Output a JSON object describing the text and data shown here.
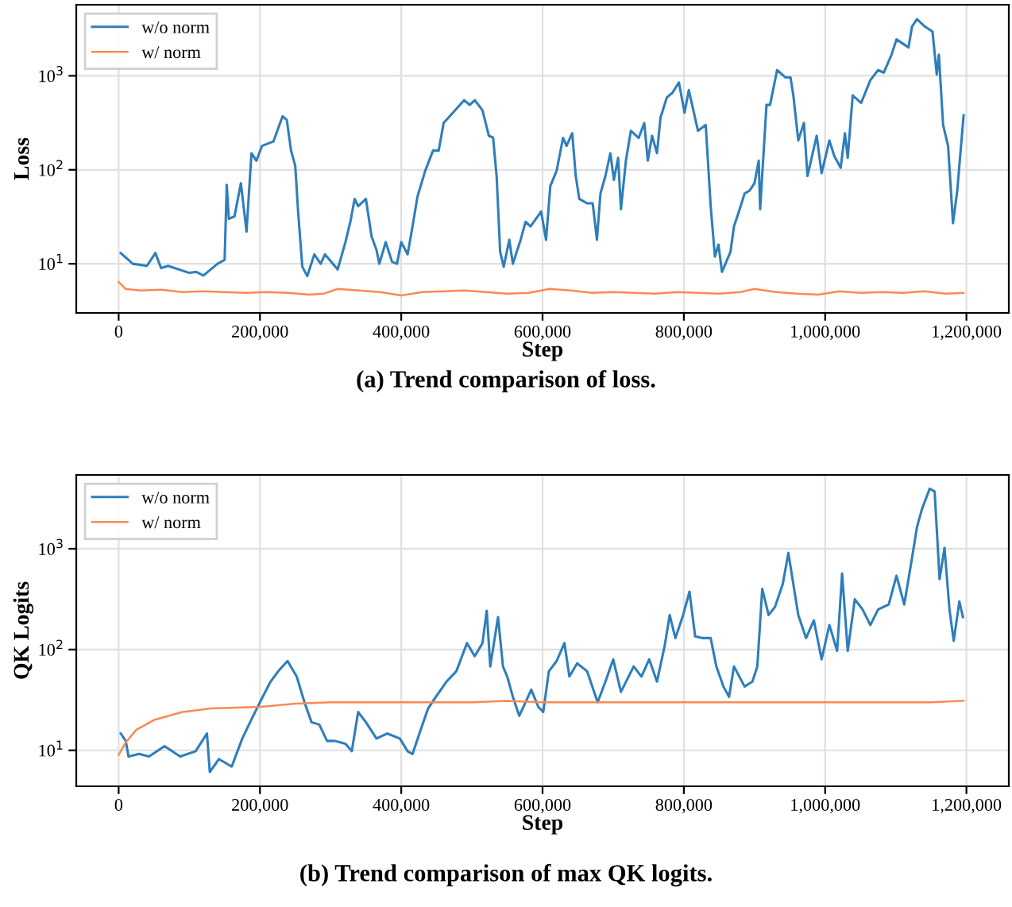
{
  "chart_data": [
    {
      "type": "line",
      "xlabel": "Step",
      "ylabel": "Loss",
      "log": "y",
      "grid": true,
      "legend": "top left",
      "marker": "none",
      "line_style": "solid",
      "xlim": [
        -60000,
        1260000
      ],
      "xticks": [
        0,
        {
          "value": 200000,
          "label": "200,000"
        },
        {
          "value": 400000,
          "label": "400,000"
        },
        {
          "value": 600000,
          "label": "600,000"
        },
        {
          "value": 800000,
          "label": "800,000"
        },
        {
          "value": 1000000,
          "label": "1,000,000"
        },
        {
          "value": 1200000,
          "label": "1,200,000"
        }
      ],
      "ylim": [
        3,
        5700
      ],
      "yticks": [
        {
          "value": 10,
          "label": "10$^{1}$"
        },
        {
          "value": 100,
          "label": "10$^{2}$"
        },
        {
          "value": 1000,
          "label": "10$^{3}$"
        }
      ],
      "annotations": [
        "(a) Trend comparison of loss."
      ],
      "series": [
        {
          "name": "w/o norm",
          "color": "#2e7ebc",
          "x": [
            3000,
            20000,
            40000,
            52000,
            60000,
            70000,
            100000,
            110000,
            120000,
            140000,
            150000,
            153000,
            156000,
            164000,
            173000,
            181000,
            188000,
            195000,
            203000,
            219000,
            232000,
            238000,
            244000,
            250000,
            254000,
            260000,
            267000,
            277000,
            286000,
            292000,
            310000,
            321000,
            328000,
            334000,
            339000,
            350000,
            358000,
            365000,
            369000,
            378000,
            387000,
            394000,
            400000,
            409000,
            416000,
            423000,
            434000,
            445000,
            453000,
            460000,
            467000,
            489000,
            497000,
            504000,
            515000,
            524000,
            530000,
            535000,
            540000,
            545000,
            553000,
            558000,
            569000,
            576000,
            583000,
            598000,
            605000,
            611000,
            620000,
            629000,
            634000,
            642000,
            647000,
            652000,
            663000,
            671000,
            677000,
            682000,
            689000,
            696000,
            701000,
            707000,
            711000,
            718000,
            725000,
            736000,
            744000,
            749000,
            755000,
            762000,
            767000,
            776000,
            784000,
            793000,
            801000,
            807000,
            820000,
            831000,
            838000,
            844000,
            849000,
            854000,
            866000,
            871000,
            878000,
            886000,
            893000,
            900000,
            906000,
            908000,
            917000,
            922000,
            932000,
            944000,
            951000,
            955000,
            962000,
            970000,
            975000,
            988000,
            995000,
            1006000,
            1013000,
            1022000,
            1028000,
            1032000,
            1039000,
            1051000,
            1064000,
            1075000,
            1083000,
            1094000,
            1101000,
            1112000,
            1118000,
            1123000,
            1130000,
            1141000,
            1152000,
            1158000,
            1161000,
            1167000,
            1174000,
            1181000,
            1187000,
            1196000
          ],
          "values": [
            13,
            10,
            9.5,
            13,
            9,
            9.5,
            8,
            8.2,
            7.5,
            10,
            11,
            69,
            30,
            32,
            72,
            22,
            150,
            125,
            180,
            200,
            370,
            340,
            160,
            110,
            36,
            9.3,
            7.4,
            12.6,
            10,
            12.6,
            8.7,
            17,
            28,
            49,
            41,
            49,
            19.5,
            14,
            10,
            17,
            10.5,
            10,
            17,
            12.6,
            25,
            52,
            98,
            160,
            160,
            315,
            360,
            550,
            490,
            550,
            430,
            230,
            220,
            86,
            13.4,
            9.3,
            18,
            10,
            18,
            28,
            25,
            36,
            18,
            67,
            98,
            218,
            180,
            245,
            86,
            49,
            44,
            44,
            18,
            56,
            86,
            150,
            78,
            134,
            38,
            125,
            260,
            218,
            315,
            125,
            230,
            150,
            360,
            590,
            660,
            850,
            405,
            705,
            260,
            300,
            41,
            11.9,
            16,
            8.2,
            13.4,
            25,
            36,
            56,
            60,
            72,
            125,
            38,
            490,
            490,
            1150,
            960,
            960,
            620,
            205,
            315,
            86,
            230,
            92,
            205,
            140,
            105,
            245,
            134,
            620,
            515,
            900,
            1150,
            1080,
            1680,
            2440,
            2150,
            2000,
            3350,
            4000,
            3350,
            2950,
            1030,
            1680,
            300,
            180,
            27,
            60,
            380
          ]
        },
        {
          "name": "w/ norm",
          "color": "#f98a54",
          "x": [
            0,
            10000,
            30000,
            60000,
            90000,
            120000,
            150000,
            180000,
            210000,
            240000,
            270000,
            290000,
            310000,
            340000,
            370000,
            400000,
            430000,
            460000,
            490000,
            520000,
            550000,
            580000,
            610000,
            640000,
            670000,
            700000,
            730000,
            760000,
            790000,
            820000,
            850000,
            880000,
            900000,
            930000,
            960000,
            990000,
            1020000,
            1050000,
            1080000,
            1110000,
            1140000,
            1170000,
            1196000
          ],
          "values": [
            6.4,
            5.4,
            5.2,
            5.3,
            5.0,
            5.1,
            5.0,
            4.9,
            5.0,
            4.9,
            4.7,
            4.8,
            5.4,
            5.2,
            5.0,
            4.6,
            5.0,
            5.1,
            5.2,
            5.0,
            4.8,
            4.9,
            5.4,
            5.2,
            4.9,
            5.0,
            4.9,
            4.8,
            5.0,
            4.9,
            4.8,
            5.0,
            5.4,
            5.0,
            4.8,
            4.7,
            5.1,
            4.9,
            5.0,
            4.9,
            5.1,
            4.8,
            4.9
          ]
        }
      ]
    },
    {
      "type": "line",
      "xlabel": "Step",
      "ylabel": "QK Logits",
      "log": "y",
      "grid": true,
      "legend": "top left",
      "marker": "none",
      "line_style": "solid",
      "xlim": [
        -60000,
        1260000
      ],
      "xticks": [
        0,
        {
          "value": 200000,
          "label": "200,000"
        },
        {
          "value": 400000,
          "label": "400,000"
        },
        {
          "value": 600000,
          "label": "600,000"
        },
        {
          "value": 800000,
          "label": "800,000"
        },
        {
          "value": 1000000,
          "label": "1,000,000"
        },
        {
          "value": 1200000,
          "label": "1,200,000"
        }
      ],
      "ylim": [
        4.4,
        5400
      ],
      "yticks": [
        {
          "value": 10,
          "label": "10$^{1}$"
        },
        {
          "value": 100,
          "label": "10$^{2}$"
        },
        {
          "value": 1000,
          "label": "10$^{3}$"
        }
      ],
      "annotations": [
        "(b) Trend comparison of max QK logits."
      ],
      "series": [
        {
          "name": "w/o norm",
          "color": "#2e7ebc",
          "x": [
            3000,
            10000,
            14000,
            29000,
            43000,
            65000,
            87000,
            109000,
            125000,
            129000,
            142000,
            160000,
            175000,
            189000,
            204000,
            215000,
            226000,
            239000,
            252000,
            263000,
            273000,
            284000,
            295000,
            306000,
            321000,
            330000,
            339000,
            350000,
            365000,
            380000,
            398000,
            409000,
            416000,
            427000,
            438000,
            449000,
            464000,
            478000,
            493000,
            504000,
            515000,
            521000,
            526000,
            537000,
            544000,
            550000,
            558000,
            567000,
            576000,
            584000,
            594000,
            601000,
            609000,
            620000,
            631000,
            638000,
            649000,
            663000,
            678000,
            689000,
            700000,
            711000,
            729000,
            740000,
            751000,
            762000,
            773000,
            780000,
            788000,
            799000,
            808000,
            816000,
            827000,
            838000,
            846000,
            856000,
            864000,
            871000,
            886000,
            897000,
            904000,
            911000,
            920000,
            929000,
            940000,
            948000,
            955000,
            962000,
            973000,
            984000,
            995000,
            1006000,
            1017000,
            1024000,
            1032000,
            1042000,
            1053000,
            1064000,
            1075000,
            1090000,
            1101000,
            1112000,
            1123000,
            1130000,
            1137000,
            1148000,
            1155000,
            1162000,
            1169000,
            1176000,
            1182000,
            1190000,
            1195000
          ],
          "values": [
            14.7,
            12.4,
            8.7,
            9.2,
            8.7,
            11,
            8.7,
            9.8,
            14.7,
            6.1,
            8.2,
            6.9,
            13.1,
            21,
            34,
            48,
            61,
            77,
            54,
            30,
            19,
            18,
            12.4,
            12.4,
            11.6,
            9.8,
            24,
            19,
            13.1,
            14.7,
            13.1,
            9.8,
            9.2,
            15.6,
            26,
            34,
            48,
            61,
            116,
            86,
            116,
            243,
            68,
            210,
            68,
            54,
            34,
            22,
            30,
            40,
            27,
            24,
            61,
            77,
            116,
            54,
            73,
            61,
            30,
            48,
            80,
            38,
            68,
            54,
            80,
            48,
            110,
            220,
            130,
            220,
            375,
            135,
            130,
            130,
            68,
            43,
            34,
            68,
            43,
            48,
            68,
            400,
            220,
            265,
            445,
            910,
            445,
            220,
            130,
            195,
            80,
            175,
            97,
            570,
            97,
            315,
            250,
            175,
            250,
            280,
            540,
            280,
            810,
            1640,
            2470,
            3950,
            3700,
            500,
            1020,
            250,
            122,
            300,
            210
          ]
        },
        {
          "name": "w/ norm",
          "color": "#f98a54",
          "x": [
            0,
            10000,
            25000,
            50000,
            90000,
            130000,
            200000,
            250000,
            300000,
            350000,
            400000,
            450000,
            500000,
            550000,
            600000,
            650000,
            700000,
            750000,
            800000,
            850000,
            900000,
            950000,
            1000000,
            1050000,
            1100000,
            1150000,
            1196000
          ],
          "values": [
            9,
            12,
            16,
            20,
            24,
            26,
            27,
            29,
            30,
            30,
            30,
            30,
            30,
            31,
            30,
            30,
            30,
            30,
            30,
            30,
            30,
            30,
            30,
            30,
            30,
            30,
            31
          ]
        }
      ]
    }
  ]
}
